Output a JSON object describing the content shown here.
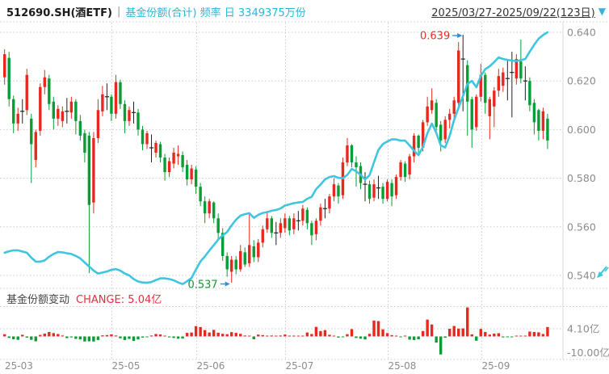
{
  "header": {
    "symbol": "512690.SH(酒ETF)",
    "separator": "|",
    "series_label": "基金份额(合计) 频率 日 3349375万份",
    "period": "2025/03/27-2025/09/22(123日)",
    "dropdown_icon": "▼"
  },
  "panel2": {
    "title": "基金份额变动",
    "change_label": "CHANGE: 5.04亿"
  },
  "colors": {
    "up": "#e8281e",
    "down": "#089e35",
    "doji": "#222222",
    "shares_line": "#3ec6e0",
    "accent_text": "#29b7d8",
    "annotation_max": "#e03028",
    "annotation_min": "#14982e",
    "arrow": "#2e8fd4",
    "grid": "#c9c9c9",
    "axis_text": "#8c8c8c",
    "axis_line": "#d9d9d9"
  },
  "price_axis": {
    "ticks": [
      0.64,
      0.62,
      0.6,
      0.58,
      0.56,
      0.54
    ],
    "labels": [
      "0.640",
      "0.620",
      "0.600",
      "0.580",
      "0.560",
      "0.540"
    ]
  },
  "change_axis": {
    "grid_value": 4.1,
    "grid_label": "4.10亿",
    "min_label": "-10.00亿"
  },
  "x_axis": {
    "ticks": [
      {
        "index": 0,
        "label": "25-03",
        "grid": false
      },
      {
        "index": 24,
        "label": "25-05",
        "grid": true
      },
      {
        "index": 43,
        "label": "25-06",
        "grid": true
      },
      {
        "index": 63,
        "label": "25-07",
        "grid": true
      },
      {
        "index": 86,
        "label": "25-08",
        "grid": true
      },
      {
        "index": 107,
        "label": "25-09",
        "grid": true
      }
    ]
  },
  "annotations": {
    "max": {
      "label": "0.639",
      "value": 0.639,
      "index": 103
    },
    "min": {
      "label": "0.537",
      "value": 0.537,
      "index": 51
    }
  },
  "icons": {
    "dropdown": "▼",
    "corner": "collapse-diagonal-arrow"
  },
  "chart_data": {
    "type": "candlestick+line+bar",
    "title": "512690.SH 酒ETF 基金份额(合计)",
    "price_ylim": [
      0.54,
      0.64
    ],
    "shares_unit": "亿份",
    "shares_latest": 334.9,
    "shares_scale": {
      "value_at_top_grid": 334.9,
      "value_at_bottom_grid": 175.1
    },
    "change_unit": "亿份",
    "change_latest": 5.04,
    "candles": [
      [
        0.6215,
        0.633,
        0.6185,
        0.631
      ],
      [
        0.6295,
        0.632,
        0.6095,
        0.6125
      ],
      [
        0.6125,
        0.614,
        0.5985,
        0.6025
      ],
      [
        0.6025,
        0.609,
        0.5995,
        0.6065
      ],
      [
        0.6075,
        0.6125,
        0.6025,
        0.6075
      ],
      [
        0.608,
        0.625,
        0.606,
        0.6225
      ],
      [
        0.6045,
        0.6065,
        0.578,
        0.594
      ],
      [
        0.5875,
        0.6,
        0.5845,
        0.599
      ],
      [
        0.5995,
        0.619,
        0.5975,
        0.6175
      ],
      [
        0.6175,
        0.6245,
        0.6145,
        0.6215
      ],
      [
        0.621,
        0.6225,
        0.608,
        0.6105
      ],
      [
        0.6115,
        0.6135,
        0.6,
        0.6045
      ],
      [
        0.6045,
        0.61,
        0.6015,
        0.6085
      ],
      [
        0.6035,
        0.6095,
        0.601,
        0.6075
      ],
      [
        0.6075,
        0.613,
        0.6025,
        0.6075
      ],
      [
        0.607,
        0.6135,
        0.6045,
        0.6115
      ],
      [
        0.6115,
        0.6125,
        0.598,
        0.6035
      ],
      [
        0.6035,
        0.606,
        0.5955,
        0.5975
      ],
      [
        0.5985,
        0.6,
        0.5865,
        0.5905
      ],
      [
        0.5975,
        0.599,
        0.541,
        0.569
      ],
      [
        0.57,
        0.599,
        0.5655,
        0.5965
      ],
      [
        0.5965,
        0.6125,
        0.5945,
        0.608
      ],
      [
        0.6075,
        0.618,
        0.6055,
        0.6145
      ],
      [
        0.6135,
        0.619,
        0.608,
        0.6135
      ],
      [
        0.6135,
        0.6145,
        0.6035,
        0.6065
      ],
      [
        0.6065,
        0.6225,
        0.6045,
        0.6195
      ],
      [
        0.6195,
        0.6205,
        0.6085,
        0.6105
      ],
      [
        0.6105,
        0.612,
        0.5985,
        0.6035
      ],
      [
        0.6035,
        0.6095,
        0.6015,
        0.608
      ],
      [
        0.607,
        0.6115,
        0.6025,
        0.607
      ],
      [
        0.607,
        0.6085,
        0.5975,
        0.6
      ],
      [
        0.6,
        0.6015,
        0.5915,
        0.594
      ],
      [
        0.594,
        0.5995,
        0.592,
        0.5985
      ],
      [
        0.5925,
        0.598,
        0.5865,
        0.5925
      ],
      [
        0.5905,
        0.5955,
        0.5885,
        0.5945
      ],
      [
        0.594,
        0.595,
        0.5865,
        0.5885
      ],
      [
        0.5885,
        0.59,
        0.579,
        0.5825
      ],
      [
        0.5825,
        0.5885,
        0.5805,
        0.587
      ],
      [
        0.586,
        0.5925,
        0.584,
        0.5905
      ],
      [
        0.589,
        0.5935,
        0.5855,
        0.59
      ],
      [
        0.5895,
        0.591,
        0.5825,
        0.5845
      ],
      [
        0.5855,
        0.5875,
        0.577,
        0.5795
      ],
      [
        0.5795,
        0.5855,
        0.5775,
        0.584
      ],
      [
        0.5835,
        0.585,
        0.5735,
        0.5765
      ],
      [
        0.5765,
        0.578,
        0.5685,
        0.5705
      ],
      [
        0.5705,
        0.5725,
        0.5615,
        0.5655
      ],
      [
        0.5655,
        0.5715,
        0.5635,
        0.5705
      ],
      [
        0.57,
        0.5705,
        0.5615,
        0.5635
      ],
      [
        0.5635,
        0.5655,
        0.5545,
        0.5575
      ],
      [
        0.5575,
        0.5595,
        0.546,
        0.548
      ],
      [
        0.548,
        0.5495,
        0.5395,
        0.5425
      ],
      [
        0.5415,
        0.548,
        0.537,
        0.5465
      ],
      [
        0.5465,
        0.548,
        0.5405,
        0.5425
      ],
      [
        0.5425,
        0.5525,
        0.5415,
        0.55
      ],
      [
        0.5495,
        0.5515,
        0.5435,
        0.5445
      ],
      [
        0.545,
        0.566,
        0.5435,
        0.5525
      ],
      [
        0.552,
        0.5545,
        0.5455,
        0.5475
      ],
      [
        0.5475,
        0.555,
        0.5455,
        0.5535
      ],
      [
        0.5535,
        0.5605,
        0.5515,
        0.559
      ],
      [
        0.559,
        0.5665,
        0.5575,
        0.5635
      ],
      [
        0.5635,
        0.5645,
        0.5555,
        0.5575
      ],
      [
        0.5575,
        0.562,
        0.5525,
        0.5575
      ],
      [
        0.5575,
        0.5635,
        0.5555,
        0.5615
      ],
      [
        0.5595,
        0.5655,
        0.5575,
        0.5635
      ],
      [
        0.5635,
        0.5645,
        0.5565,
        0.5585
      ],
      [
        0.559,
        0.5655,
        0.557,
        0.5635
      ],
      [
        0.5625,
        0.5665,
        0.5585,
        0.5625
      ],
      [
        0.5625,
        0.569,
        0.5605,
        0.5675
      ],
      [
        0.567,
        0.568,
        0.559,
        0.5615
      ],
      [
        0.5615,
        0.5625,
        0.5525,
        0.5565
      ],
      [
        0.557,
        0.5635,
        0.5545,
        0.5625
      ],
      [
        0.5625,
        0.5695,
        0.5605,
        0.568
      ],
      [
        0.5675,
        0.5715,
        0.5635,
        0.5675
      ],
      [
        0.5675,
        0.5735,
        0.5655,
        0.5725
      ],
      [
        0.5725,
        0.58,
        0.5705,
        0.5775
      ],
      [
        0.577,
        0.578,
        0.5695,
        0.5725
      ],
      [
        0.573,
        0.5885,
        0.5715,
        0.5865
      ],
      [
        0.5865,
        0.5965,
        0.585,
        0.5935
      ],
      [
        0.5935,
        0.594,
        0.5845,
        0.5865
      ],
      [
        0.5865,
        0.589,
        0.5765,
        0.5845
      ],
      [
        0.585,
        0.5865,
        0.5755,
        0.578
      ],
      [
        0.5775,
        0.5825,
        0.5705,
        0.5775
      ],
      [
        0.5775,
        0.579,
        0.5695,
        0.5715
      ],
      [
        0.572,
        0.5795,
        0.5705,
        0.5775
      ],
      [
        0.576,
        0.581,
        0.5715,
        0.576
      ],
      [
        0.5765,
        0.578,
        0.5695,
        0.5715
      ],
      [
        0.5715,
        0.5795,
        0.5705,
        0.5785
      ],
      [
        0.578,
        0.5795,
        0.5685,
        0.5725
      ],
      [
        0.573,
        0.5815,
        0.5715,
        0.5805
      ],
      [
        0.5805,
        0.5875,
        0.579,
        0.5865
      ],
      [
        0.586,
        0.587,
        0.5785,
        0.5805
      ],
      [
        0.5815,
        0.59,
        0.5795,
        0.589
      ],
      [
        0.589,
        0.5985,
        0.5865,
        0.5975
      ],
      [
        0.5975,
        0.598,
        0.5905,
        0.5925
      ],
      [
        0.5925,
        0.604,
        0.591,
        0.603
      ],
      [
        0.603,
        0.6135,
        0.6015,
        0.6095
      ],
      [
        0.608,
        0.617,
        0.6065,
        0.612
      ],
      [
        0.611,
        0.6125,
        0.5995,
        0.601
      ],
      [
        0.602,
        0.6035,
        0.591,
        0.5955
      ],
      [
        0.596,
        0.6055,
        0.5945,
        0.604
      ],
      [
        0.604,
        0.6085,
        0.6005,
        0.6065
      ],
      [
        0.6065,
        0.6135,
        0.6045,
        0.612
      ],
      [
        0.611,
        0.636,
        0.608,
        0.6325
      ],
      [
        0.629,
        0.639,
        0.6075,
        0.629
      ],
      [
        0.6265,
        0.6285,
        0.5975,
        0.6115
      ],
      [
        0.6125,
        0.6135,
        0.5925,
        0.6
      ],
      [
        0.601,
        0.6145,
        0.5995,
        0.6135
      ],
      [
        0.6135,
        0.627,
        0.6115,
        0.6225
      ],
      [
        0.6225,
        0.6235,
        0.6065,
        0.611
      ],
      [
        0.6055,
        0.6135,
        0.596,
        0.6125
      ],
      [
        0.6095,
        0.6175,
        0.601,
        0.616
      ],
      [
        0.616,
        0.625,
        0.6135,
        0.622
      ],
      [
        0.618,
        0.6255,
        0.6155,
        0.6235
      ],
      [
        0.621,
        0.629,
        0.612,
        0.621
      ],
      [
        0.6235,
        0.632,
        0.605,
        0.6235
      ],
      [
        0.621,
        0.631,
        0.6185,
        0.629
      ],
      [
        0.628,
        0.637,
        0.619,
        0.621
      ],
      [
        0.62,
        0.626,
        0.612,
        0.62
      ],
      [
        0.62,
        0.6215,
        0.6075,
        0.61
      ],
      [
        0.611,
        0.6125,
        0.598,
        0.603
      ],
      [
        0.608,
        0.6085,
        0.5955,
        0.5995
      ],
      [
        0.5995,
        0.609,
        0.596,
        0.6075
      ],
      [
        0.6045,
        0.6065,
        0.592,
        0.5955
      ]
    ],
    "shares": [
      190.0,
      191.0,
      191.6,
      191.6,
      190.8,
      190.0,
      186.8,
      184.2,
      184.2,
      185.0,
      187.4,
      189.2,
      190.5,
      190.3,
      189.7,
      189.2,
      187.9,
      186.3,
      183.6,
      181.0,
      178.3,
      176.4,
      177.0,
      177.7,
      178.8,
      179.3,
      178.3,
      176.4,
      175.1,
      172.7,
      171.1,
      170.5,
      170.3,
      170.8,
      172.1,
      173.2,
      173.2,
      172.7,
      171.9,
      170.5,
      169.4,
      171.3,
      173.4,
      179.0,
      184.2,
      187.6,
      191.5,
      195.0,
      198.7,
      201.4,
      203.7,
      208.0,
      211.7,
      214.4,
      215.4,
      216.0,
      213.0,
      214.9,
      216.2,
      216.7,
      217.6,
      218.1,
      219.1,
      221.0,
      221.8,
      222.6,
      223.1,
      223.4,
      225.5,
      226.8,
      231.9,
      234.8,
      238.2,
      239.8,
      240.4,
      239.3,
      239.0,
      241.2,
      245.1,
      243.6,
      241.2,
      238.2,
      240.9,
      249.4,
      257.6,
      261.4,
      263.2,
      264.5,
      264.5,
      263.7,
      263.7,
      260.6,
      257.1,
      254.2,
      259.5,
      268.5,
      274.9,
      268.8,
      260.6,
      259.2,
      266.9,
      277.3,
      285.3,
      293.0,
      300.9,
      303.0,
      298.8,
      306.2,
      310.7,
      312.6,
      315.3,
      318.4,
      317.4,
      316.8,
      316.3,
      316.0,
      316.6,
      317.4,
      322.2,
      326.7,
      330.7,
      333.1,
      334.9
    ],
    "changes": [
      1.2,
      -0.8,
      -1.5,
      -1.8,
      0.9,
      -0.6,
      -1.8,
      -2.6,
      0.8,
      1.5,
      2.4,
      1.8,
      1.3,
      0.5,
      -0.9,
      -0.5,
      -1.3,
      -1.6,
      -2.7,
      -2.6,
      -2.7,
      -1.9,
      0.6,
      0.7,
      1.1,
      0.5,
      -1.0,
      -1.9,
      -1.3,
      -2.4,
      -1.6,
      -0.6,
      -0.3,
      0.5,
      1.3,
      1.1,
      0.1,
      -0.5,
      -0.8,
      -1.2,
      -1.1,
      1.9,
      2.1,
      5.5,
      5.0,
      3.4,
      2.1,
      3.5,
      2.0,
      1.4,
      1.2,
      2.3,
      1.9,
      1.4,
      0.5,
      0.3,
      -1.5,
      1.0,
      0.7,
      0.3,
      0.5,
      0.3,
      0.5,
      1.0,
      0.4,
      0.4,
      0.3,
      0.1,
      2.1,
      1.3,
      5.1,
      2.9,
      3.4,
      0.9,
      0.3,
      -0.6,
      -0.1,
      1.2,
      3.9,
      -0.8,
      -1.2,
      -1.6,
      1.4,
      8.5,
      8.2,
      3.8,
      1.8,
      0.7,
      0.1,
      -0.4,
      0.1,
      -1.7,
      -1.9,
      -1.5,
      2.9,
      9.0,
      6.4,
      -3.3,
      -9.6,
      -0.7,
      4.1,
      5.6,
      4.2,
      4.3,
      15.5,
      1.1,
      -2.3,
      4.0,
      2.4,
      1.0,
      1.5,
      1.7,
      -0.5,
      -0.3,
      -0.3,
      0.2,
      0.3,
      0.4,
      2.6,
      2.4,
      2.2,
      1.3,
      5.04
    ]
  }
}
